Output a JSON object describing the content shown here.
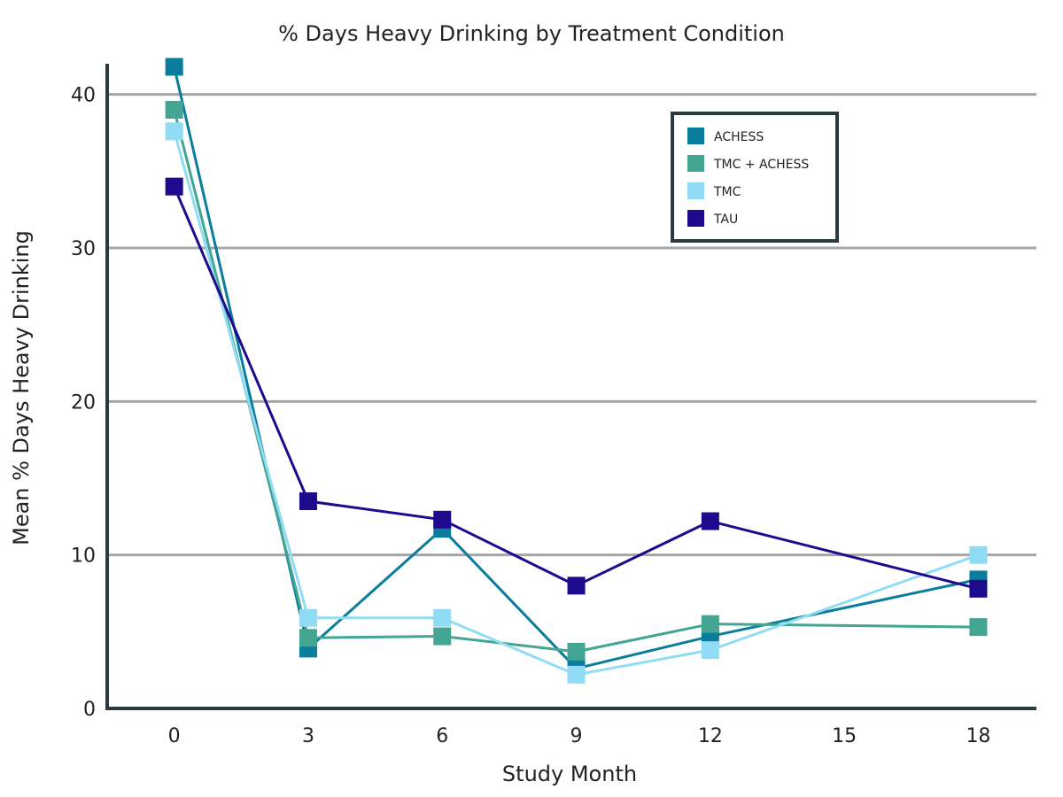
{
  "chart_data": {
    "type": "line",
    "title": "% Days Heavy Drinking by Treatment Condition",
    "xlabel": "Study Month",
    "ylabel": "Mean % Days Heavy Drinking",
    "xlim": [
      -1.5,
      19.3
    ],
    "ylim": [
      0,
      42
    ],
    "x_ticks": [
      "0",
      "3",
      "6",
      "9",
      "12",
      "15",
      "18"
    ],
    "y_ticks": [
      "0",
      "10",
      "20",
      "30",
      "40"
    ],
    "grid": "horizontal",
    "legend_position": "top-right",
    "series": [
      {
        "name": "ACHESS",
        "color": "#0a7c9c",
        "x": [
          0,
          3,
          6,
          9,
          12,
          18
        ],
        "y": [
          41.8,
          3.9,
          11.7,
          2.6,
          4.7,
          8.4
        ]
      },
      {
        "name": "TMC + ACHESS",
        "color": "#43a592",
        "x": [
          0,
          3,
          6,
          9,
          12,
          18
        ],
        "y": [
          39.0,
          4.6,
          4.7,
          3.7,
          5.5,
          5.3
        ]
      },
      {
        "name": "TMC",
        "color": "#8fdcf4",
        "x": [
          0,
          3,
          6,
          9,
          12,
          18
        ],
        "y": [
          37.6,
          5.9,
          5.9,
          2.2,
          3.8,
          10.0
        ]
      },
      {
        "name": "TAU",
        "color": "#1e0a8c",
        "x": [
          0,
          3,
          6,
          9,
          12,
          18
        ],
        "y": [
          34.0,
          13.5,
          12.3,
          8.0,
          12.2,
          7.8
        ]
      }
    ]
  }
}
